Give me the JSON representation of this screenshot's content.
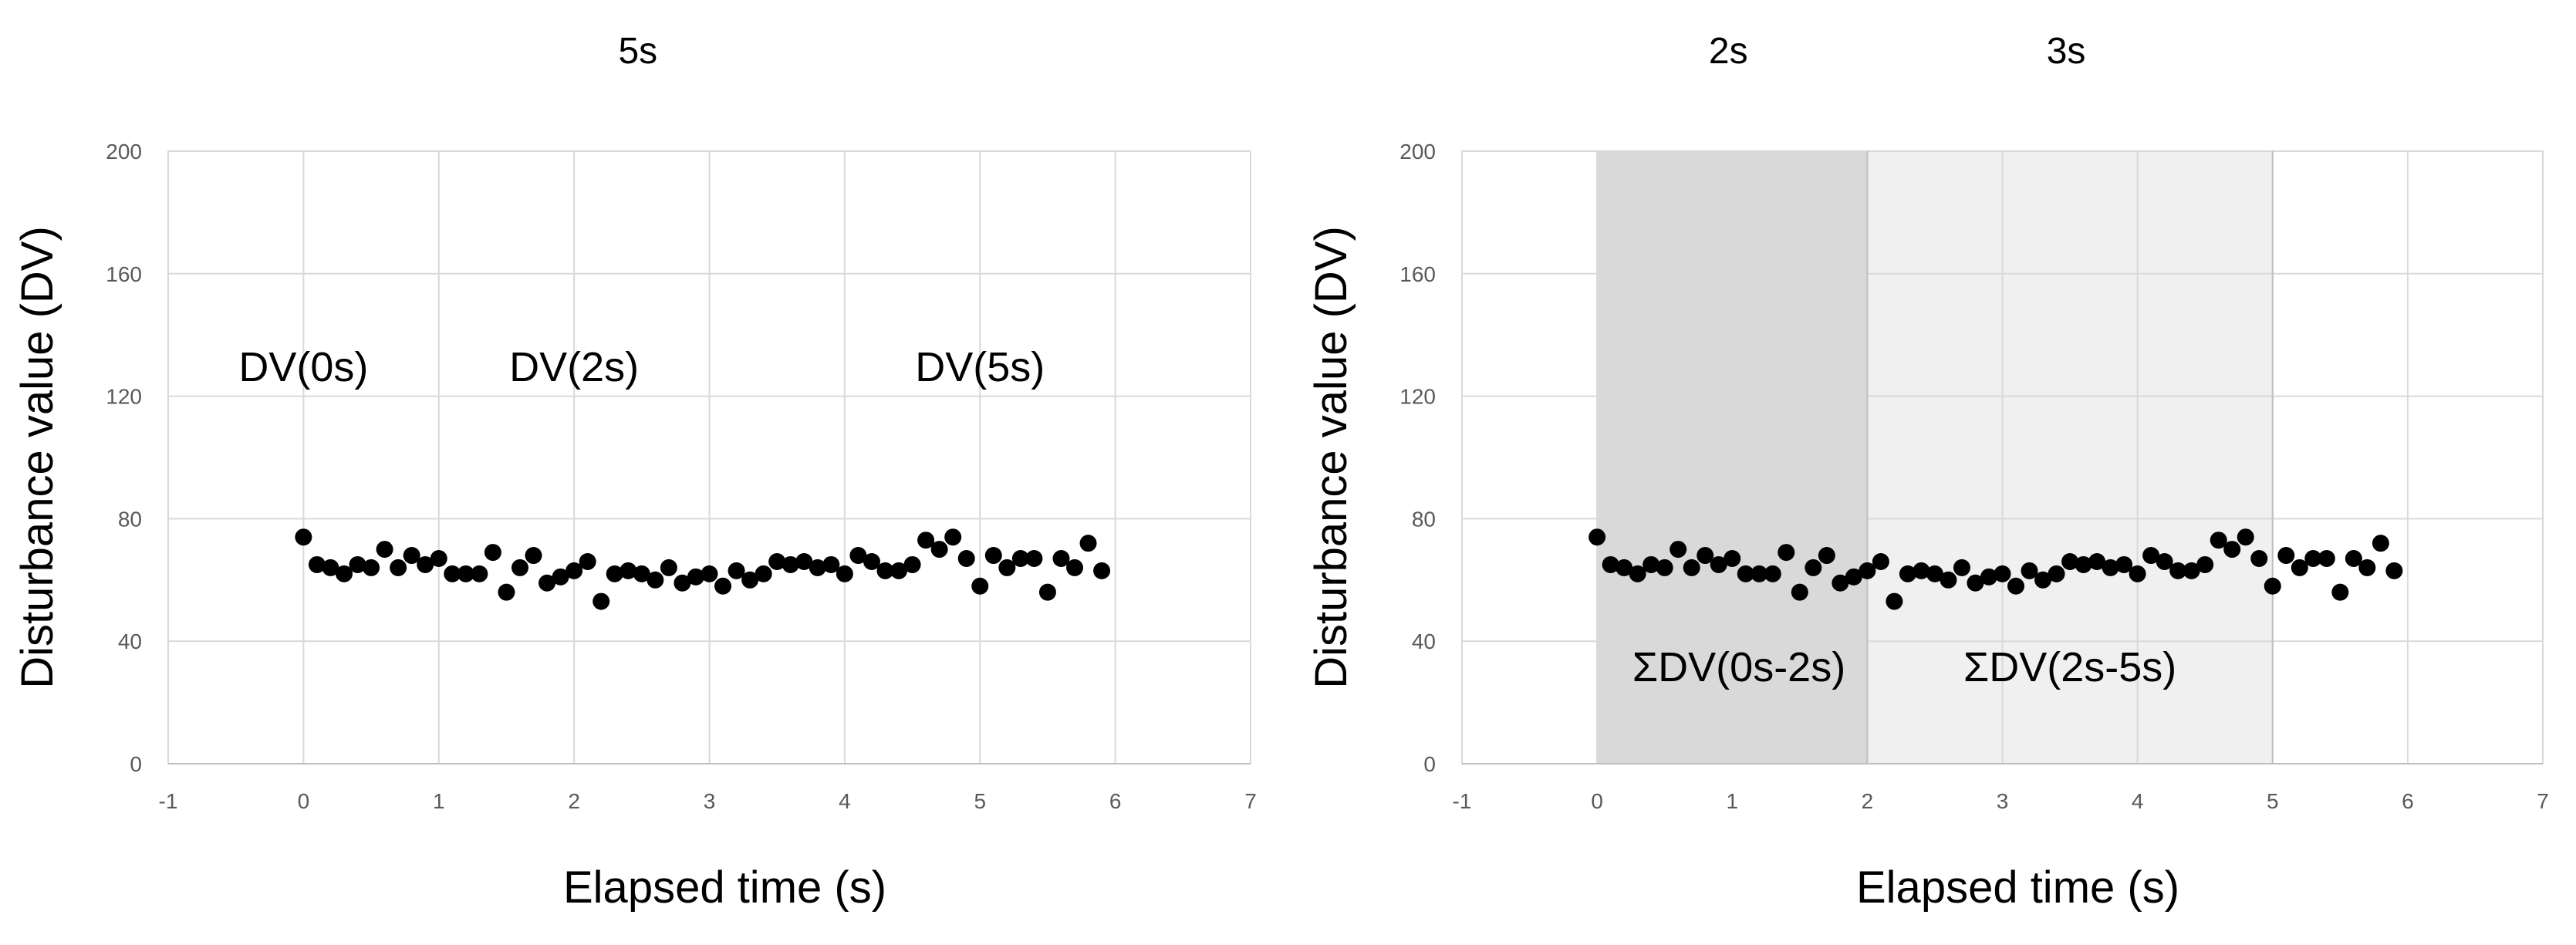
{
  "chart_data": [
    {
      "type": "scatter",
      "title": "",
      "xlabel": "Elapsed time (s)",
      "ylabel": "Disturbance value (DV)",
      "xlim": [
        -1,
        7
      ],
      "ylim": [
        0,
        200
      ],
      "xticks": [
        -1,
        0,
        1,
        2,
        3,
        4,
        5,
        6,
        7
      ],
      "yticks": [
        0,
        40,
        80,
        120,
        160,
        200
      ],
      "grid": true,
      "duration_labels": [
        {
          "text": "5s",
          "x_start": 0,
          "x_end": 5
        }
      ],
      "annotations": [
        {
          "text": "DV(0s)",
          "x": 0,
          "y": 130
        },
        {
          "text": "DV(2s)",
          "x": 2,
          "y": 130
        },
        {
          "text": "DV(5s)",
          "x": 5,
          "y": 130
        }
      ],
      "shaded_regions": [],
      "series": [
        {
          "name": "DV",
          "marker_color": "#000000",
          "x": [
            0.0,
            0.1,
            0.2,
            0.3,
            0.4,
            0.5,
            0.6,
            0.7,
            0.8,
            0.9,
            1.0,
            1.1,
            1.2,
            1.3,
            1.4,
            1.5,
            1.6,
            1.7,
            1.8,
            1.9,
            2.0,
            2.1,
            2.2,
            2.3,
            2.4,
            2.5,
            2.6,
            2.7,
            2.8,
            2.9,
            3.0,
            3.1,
            3.2,
            3.3,
            3.4,
            3.5,
            3.6,
            3.7,
            3.8,
            3.9,
            4.0,
            4.1,
            4.2,
            4.3,
            4.4,
            4.5,
            4.6,
            4.7,
            4.8,
            4.9,
            5.0,
            5.1,
            5.2,
            5.3,
            5.4,
            5.5,
            5.6,
            5.7,
            5.8,
            5.9
          ],
          "y": [
            74,
            65,
            64,
            62,
            65,
            64,
            70,
            64,
            68,
            65,
            67,
            62,
            62,
            62,
            69,
            56,
            64,
            68,
            59,
            61,
            63,
            66,
            53,
            62,
            63,
            62,
            60,
            64,
            59,
            61,
            62,
            58,
            63,
            60,
            62,
            66,
            65,
            66,
            64,
            65,
            62,
            68,
            66,
            63,
            63,
            65,
            73,
            70,
            74,
            67,
            58,
            68,
            64,
            67,
            67,
            56,
            67,
            64,
            72,
            63
          ]
        }
      ]
    },
    {
      "type": "scatter",
      "title": "",
      "xlabel": "Elapsed time (s)",
      "ylabel": "Disturbance value (DV)",
      "xlim": [
        -1,
        7
      ],
      "ylim": [
        0,
        200
      ],
      "xticks": [
        -1,
        0,
        1,
        2,
        3,
        4,
        5,
        6,
        7
      ],
      "yticks": [
        0,
        40,
        80,
        120,
        160,
        200
      ],
      "grid": true,
      "duration_labels": [
        {
          "text": "2s",
          "x_start": 0,
          "x_end": 2
        },
        {
          "text": "3s",
          "x_start": 2,
          "x_end": 5
        }
      ],
      "annotations": [
        {
          "text": "ΣDV(0s-2s)",
          "x": 1.05,
          "y": 32
        },
        {
          "text": "ΣDV(2s-5s)",
          "x": 3.5,
          "y": 32
        }
      ],
      "shaded_regions": [
        {
          "x_start": 0,
          "x_end": 2,
          "color": "#d9d9d9"
        },
        {
          "x_start": 2,
          "x_end": 5,
          "color": "#f0f0f0"
        }
      ],
      "series": [
        {
          "name": "DV",
          "marker_color": "#000000",
          "x": [
            0.0,
            0.1,
            0.2,
            0.3,
            0.4,
            0.5,
            0.6,
            0.7,
            0.8,
            0.9,
            1.0,
            1.1,
            1.2,
            1.3,
            1.4,
            1.5,
            1.6,
            1.7,
            1.8,
            1.9,
            2.0,
            2.1,
            2.2,
            2.3,
            2.4,
            2.5,
            2.6,
            2.7,
            2.8,
            2.9,
            3.0,
            3.1,
            3.2,
            3.3,
            3.4,
            3.5,
            3.6,
            3.7,
            3.8,
            3.9,
            4.0,
            4.1,
            4.2,
            4.3,
            4.4,
            4.5,
            4.6,
            4.7,
            4.8,
            4.9,
            5.0,
            5.1,
            5.2,
            5.3,
            5.4,
            5.5,
            5.6,
            5.7,
            5.8,
            5.9
          ],
          "y": [
            74,
            65,
            64,
            62,
            65,
            64,
            70,
            64,
            68,
            65,
            67,
            62,
            62,
            62,
            69,
            56,
            64,
            68,
            59,
            61,
            63,
            66,
            53,
            62,
            63,
            62,
            60,
            64,
            59,
            61,
            62,
            58,
            63,
            60,
            62,
            66,
            65,
            66,
            64,
            65,
            62,
            68,
            66,
            63,
            63,
            65,
            73,
            70,
            74,
            67,
            58,
            68,
            64,
            67,
            67,
            56,
            67,
            64,
            72,
            63
          ]
        }
      ]
    }
  ]
}
